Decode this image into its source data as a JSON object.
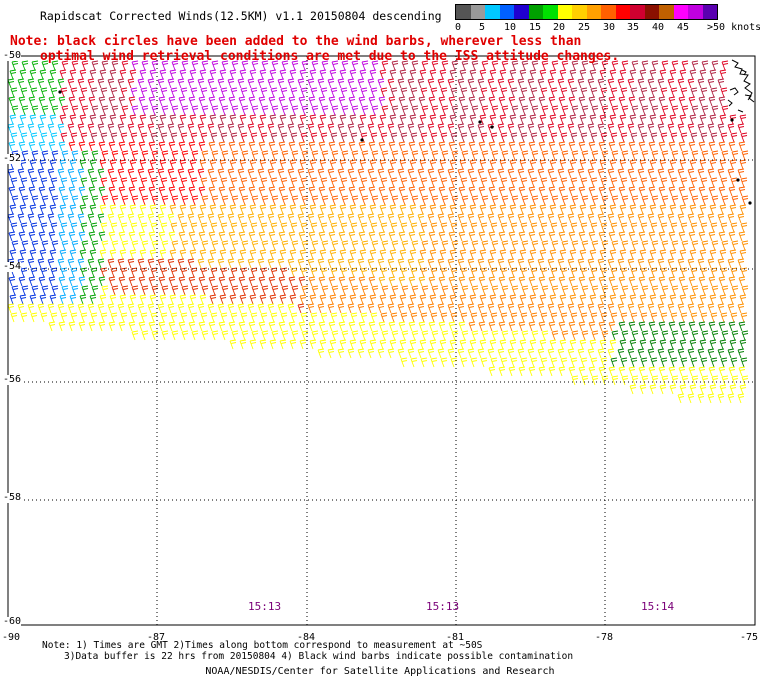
{
  "title": "Rapidscat Corrected Winds(12.5KM) v1.1 20150804 descending",
  "note": {
    "line1": "Note: black circles have been added to the wind barbs, wherever less than",
    "line2": "optimal wind retrieval conditions are met due to the ISS attitude changes."
  },
  "legend": {
    "colors": [
      "#555555",
      "#9a9a9a",
      "#00c8ff",
      "#0060ff",
      "#2000d0",
      "#00a000",
      "#00e000",
      "#ffff00",
      "#ffd000",
      "#ffa000",
      "#ff6000",
      "#ff0000",
      "#d00030",
      "#8a1000",
      "#c06000",
      "#ff00ff",
      "#c000e0",
      "#5a00b0"
    ],
    "labels": [
      "0",
      "5",
      "10",
      "15",
      "20",
      "25",
      "30",
      "35",
      "40",
      "45",
      ">50 knots"
    ]
  },
  "axes": {
    "lat_labels": [
      "-50",
      "-52",
      "-54",
      "-56",
      "-58",
      "-60"
    ],
    "lon_labels": [
      "-90",
      "-87",
      "-84",
      "-81",
      "-78",
      "-75"
    ]
  },
  "pass_times": [
    "15:13",
    "15:13",
    "15:14"
  ],
  "footnotes": {
    "line1": "Note: 1) Times are GMT 2)Times along bottom correspond to measurement at ~50S",
    "line2": "3)Data buffer is 22 hrs from 20150804 4) Black wind barbs indicate possible contamination"
  },
  "credit": "NOAA/NESDIS/Center for Satellite Applications and Research"
}
